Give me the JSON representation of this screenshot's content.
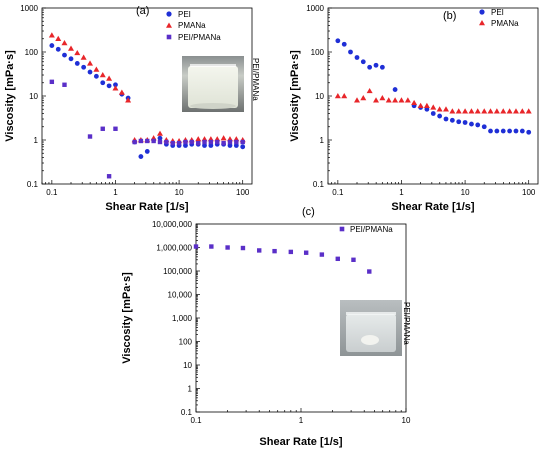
{
  "chart_data": [
    {
      "type": "scatter",
      "panel_label": "(a)",
      "xlabel": "Shear Rate [1/s]",
      "ylabel": "Viscosity [mPa·s]",
      "xscale": "log",
      "yscale": "log",
      "xlim": [
        0.07,
        140
      ],
      "ylim": [
        0.1,
        1000
      ],
      "x_ticks": [
        {
          "v": 0.1,
          "label": "0.1"
        },
        {
          "v": 1,
          "label": "1"
        },
        {
          "v": 10,
          "label": "10"
        },
        {
          "v": 100,
          "label": "100"
        }
      ],
      "y_ticks": [
        {
          "v": 0.1,
          "label": "0.1"
        },
        {
          "v": 1,
          "label": "1"
        },
        {
          "v": 10,
          "label": "10"
        },
        {
          "v": 100,
          "label": "100"
        },
        {
          "v": 1000,
          "label": "1000"
        }
      ],
      "legend_position": "top-right",
      "photo_label": "PEI/PMANa",
      "series": [
        {
          "name": "PEI",
          "color": "#1f2fd6",
          "marker": "circle",
          "x": [
            0.1,
            0.126,
            0.158,
            0.2,
            0.251,
            0.316,
            0.398,
            0.501,
            0.631,
            0.794,
            1.0,
            1.26,
            1.58,
            2.0,
            2.51,
            3.16,
            3.98,
            5.01,
            6.31,
            7.94,
            10,
            12.6,
            15.8,
            20,
            25.1,
            31.6,
            39.8,
            50.1,
            63.1,
            79.4,
            100
          ],
          "y": [
            140,
            115,
            85,
            70,
            55,
            45,
            35,
            28,
            20,
            17,
            18,
            11,
            9,
            0.9,
            0.42,
            0.55,
            1.0,
            1.1,
            0.8,
            0.75,
            0.75,
            0.75,
            0.8,
            0.8,
            0.75,
            0.75,
            0.8,
            0.8,
            0.75,
            0.75,
            0.7
          ]
        },
        {
          "name": "PMANa",
          "color": "#e8262a",
          "marker": "triangle",
          "x": [
            0.1,
            0.126,
            0.158,
            0.2,
            0.251,
            0.316,
            0.398,
            0.501,
            0.631,
            0.794,
            1.0,
            1.26,
            1.58,
            2.0,
            2.51,
            3.16,
            3.98,
            5.01,
            6.31,
            7.94,
            10,
            12.6,
            15.8,
            20,
            25.1,
            31.6,
            39.8,
            50.1,
            63.1,
            79.4,
            100
          ],
          "y": [
            240,
            200,
            160,
            120,
            95,
            75,
            55,
            40,
            30,
            25,
            15,
            12,
            8,
            1.0,
            1.0,
            1.0,
            1.1,
            1.4,
            1.0,
            0.95,
            0.95,
            1.0,
            1.0,
            1.05,
            1.05,
            1.05,
            1.05,
            1.1,
            1.05,
            1.05,
            1.0
          ]
        },
        {
          "name": "PEI/PMANa",
          "color": "#5a2fc8",
          "marker": "square",
          "x": [
            0.1,
            0.158,
            0.398,
            0.631,
            0.794,
            1.0,
            2.0,
            2.51,
            3.16,
            3.98,
            5.01,
            6.31,
            7.94,
            10,
            12.6,
            15.8,
            20,
            25.1,
            31.6,
            39.8,
            50.1,
            63.1,
            79.4,
            100
          ],
          "y": [
            21,
            18,
            1.2,
            1.8,
            0.15,
            1.8,
            0.9,
            0.95,
            0.95,
            0.95,
            0.9,
            0.9,
            0.85,
            0.85,
            0.9,
            0.9,
            0.85,
            0.9,
            0.9,
            0.9,
            0.85,
            0.9,
            0.9,
            0.9
          ]
        }
      ]
    },
    {
      "type": "scatter",
      "panel_label": "(b)",
      "xlabel": "Shear Rate [1/s]",
      "ylabel": "Viscosity [mPa·s]",
      "xscale": "log",
      "yscale": "log",
      "xlim": [
        0.07,
        140
      ],
      "ylim": [
        0.1,
        1000
      ],
      "x_ticks": [
        {
          "v": 0.1,
          "label": "0.1"
        },
        {
          "v": 1,
          "label": "1"
        },
        {
          "v": 10,
          "label": "10"
        },
        {
          "v": 100,
          "label": "100"
        }
      ],
      "y_ticks": [
        {
          "v": 0.1,
          "label": "0.1"
        },
        {
          "v": 1,
          "label": "1"
        },
        {
          "v": 10,
          "label": "10"
        },
        {
          "v": 100,
          "label": "100"
        },
        {
          "v": 1000,
          "label": "1000"
        }
      ],
      "legend_position": "top-right",
      "series": [
        {
          "name": "PEI",
          "color": "#1f2fd6",
          "marker": "circle",
          "x": [
            0.1,
            0.126,
            0.158,
            0.2,
            0.251,
            0.316,
            0.398,
            0.501,
            0.794,
            1.58,
            2.0,
            2.51,
            3.16,
            3.98,
            5.01,
            6.31,
            7.94,
            10,
            12.6,
            15.8,
            20,
            25.1,
            31.6,
            39.8,
            50.1,
            63.1,
            79.4,
            100
          ],
          "y": [
            180,
            150,
            100,
            75,
            60,
            45,
            50,
            45,
            14,
            6,
            5.5,
            5,
            4,
            3.5,
            3,
            2.8,
            2.6,
            2.5,
            2.3,
            2.2,
            2.0,
            1.6,
            1.6,
            1.6,
            1.6,
            1.6,
            1.6,
            1.5
          ]
        },
        {
          "name": "PMANa",
          "color": "#e8262a",
          "marker": "triangle",
          "x": [
            0.1,
            0.126,
            0.2,
            0.251,
            0.316,
            0.398,
            0.501,
            0.631,
            0.794,
            1.0,
            1.26,
            1.58,
            2.0,
            2.51,
            3.16,
            3.98,
            5.01,
            6.31,
            7.94,
            10,
            12.6,
            15.8,
            20,
            25.1,
            31.6,
            39.8,
            50.1,
            63.1,
            79.4,
            100
          ],
          "y": [
            10,
            10,
            8,
            9,
            13,
            8,
            9,
            8,
            8,
            8,
            8,
            7,
            6,
            6,
            5.5,
            5,
            5,
            4.5,
            4.5,
            4.5,
            4.5,
            4.5,
            4.5,
            4.5,
            4.5,
            4.5,
            4.5,
            4.5,
            4.5,
            4.5
          ]
        }
      ]
    },
    {
      "type": "scatter",
      "panel_label": "(c)",
      "xlabel": "Shear Rate [1/s]",
      "ylabel": "Viscosity [mPa·s]",
      "xscale": "log",
      "yscale": "log",
      "xlim": [
        0.1,
        10
      ],
      "ylim": [
        0.1,
        10000000
      ],
      "x_ticks": [
        {
          "v": 0.1,
          "label": "0.1"
        },
        {
          "v": 1,
          "label": "1"
        },
        {
          "v": 10,
          "label": "10"
        }
      ],
      "y_ticks": [
        {
          "v": 0.1,
          "label": "0.1"
        },
        {
          "v": 1,
          "label": "1"
        },
        {
          "v": 10,
          "label": "10"
        },
        {
          "v": 100,
          "label": "100"
        },
        {
          "v": 1000,
          "label": "1,000"
        },
        {
          "v": 10000,
          "label": "10,000"
        },
        {
          "v": 100000,
          "label": "100,000"
        },
        {
          "v": 1000000,
          "label": "1,000,000"
        },
        {
          "v": 10000000,
          "label": "10,000,000"
        }
      ],
      "legend_position": "top-right",
      "photo_label": "PEI/PMANa",
      "series": [
        {
          "name": "PEI/PMANa",
          "color": "#5a2fc8",
          "marker": "square",
          "x": [
            0.1,
            0.14,
            0.2,
            0.28,
            0.4,
            0.56,
            0.8,
            1.12,
            1.58,
            2.24,
            3.16,
            4.47
          ],
          "y": [
            1100000,
            1100000,
            1000000,
            950000,
            750000,
            700000,
            650000,
            600000,
            500000,
            330000,
            300000,
            95000
          ]
        }
      ]
    }
  ]
}
